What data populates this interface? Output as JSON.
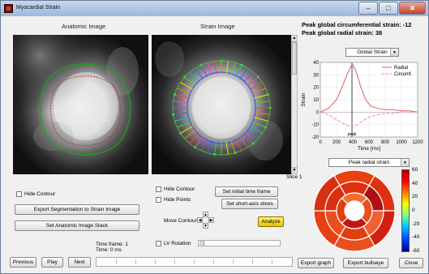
{
  "window": {
    "title": "Myocardial Strain",
    "minimize": "–",
    "maximize": "□",
    "close": "✕"
  },
  "labels": {
    "anatomic": "Anatomic Image",
    "strain": "Strain Image",
    "slice": "Slice 1"
  },
  "left": {
    "hide_contour": "Hide Contour",
    "export_seg": "Export Segmentation to Strain Image",
    "set_stack": "Set Anatomic Image Stack",
    "previous": "Previous",
    "play": "Play",
    "next": "Next",
    "time_frame": "Time frame: 1",
    "time": "Time: 0 ms"
  },
  "middle": {
    "hide_contour": "Hide Contour",
    "hide_points": "Hide Points",
    "set_initial": "Set initial time frame",
    "set_short_axis": "Set short-axis slices",
    "move_contour": "Move Contour",
    "analyze": "Analyze",
    "lv_rotation": "LV Rotation",
    "arrow_up": "▲",
    "arrow_down": "▼",
    "arrow_left": "◀",
    "arrow_right": "▶"
  },
  "right": {
    "peak_circ": "Peak global circumferential strain: -12",
    "peak_radial": "Peak global radial strain: 38",
    "strain_select": "Global Strain",
    "bullseye_select": "Peak radial strain",
    "export_graph": "Export graph",
    "export_bullseye": "Export bullseye",
    "close": "Close"
  },
  "chart_data": {
    "type": "line",
    "xlabel": "Time [ms]",
    "ylabel": "Strain",
    "xlim": [
      0,
      1200
    ],
    "ylim": [
      -20,
      40
    ],
    "xticks": [
      0,
      200,
      400,
      600,
      800,
      1000,
      1200
    ],
    "yticks": [
      -20,
      -10,
      0,
      10,
      20,
      30,
      40
    ],
    "marker_x": 390,
    "marker_label": "peak",
    "series": [
      {
        "name": "Radial",
        "style": "solid",
        "color": "#e06060",
        "x": [
          0,
          100,
          200,
          280,
          340,
          380,
          400,
          440,
          500,
          560,
          620,
          700,
          800,
          900,
          1000,
          1100,
          1200
        ],
        "y": [
          0,
          3,
          10,
          22,
          32,
          37,
          38,
          33,
          20,
          10,
          5,
          3,
          2,
          2,
          1,
          1,
          0
        ]
      },
      {
        "name": "Circumf.",
        "style": "dashed",
        "color": "#e89090",
        "x": [
          0,
          100,
          200,
          280,
          340,
          400,
          460,
          520,
          600,
          700,
          800,
          900,
          1000,
          1100,
          1200
        ],
        "y": [
          0,
          -2,
          -6,
          -9,
          -11,
          -12,
          -10,
          -7,
          -4,
          -2,
          -1,
          -1,
          0,
          0,
          0
        ]
      }
    ]
  },
  "colorbar": {
    "ticks": [
      "60",
      "40",
      "20",
      "0",
      "-20",
      "-40",
      "-60"
    ]
  },
  "bullseye": {
    "rings": [
      [
        "#e84010",
        "#e03010",
        "#d02010",
        "#e85020",
        "#e84010",
        "#d83010"
      ],
      [
        "#e03010",
        "#b01010",
        "#f06030",
        "#e04010",
        "#e85020",
        "#d83010"
      ],
      [
        "#f07030",
        "#e85020",
        "#c01818",
        "#e04010"
      ]
    ],
    "center_color": "#ffffff"
  }
}
